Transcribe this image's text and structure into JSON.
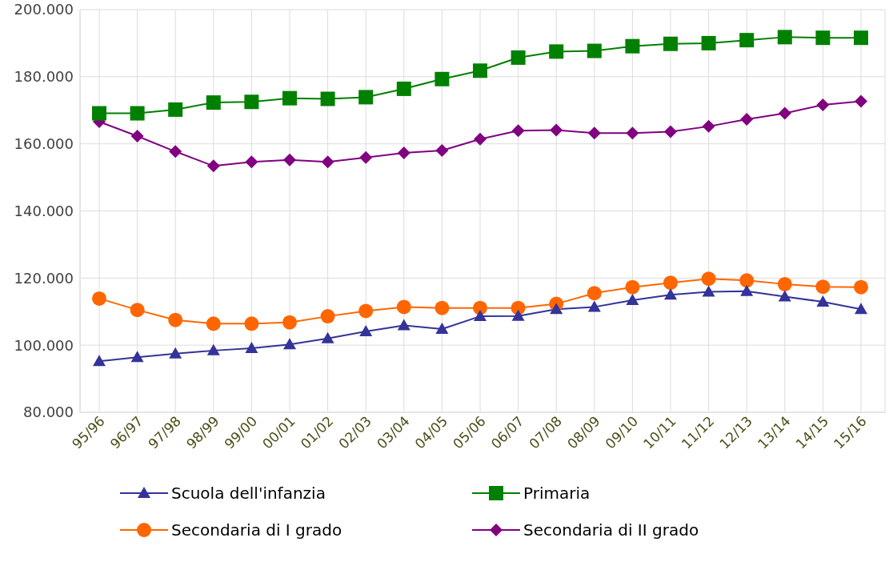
{
  "chart_data": {
    "type": "line",
    "categories": [
      "95/96",
      "96/97",
      "97/98",
      "98/99",
      "99/00",
      "00/01",
      "01/02",
      "02/03",
      "03/04",
      "04/05",
      "05/06",
      "06/07",
      "07/08",
      "08/09",
      "09/10",
      "10/11",
      "11/12",
      "12/13",
      "13/14",
      "14/15",
      "15/16"
    ],
    "series": [
      {
        "name": "Scuola dell'infanzia",
        "color": "#333399",
        "marker": "triangle",
        "values": [
          95200,
          96400,
          97500,
          98400,
          99100,
          100200,
          102000,
          104100,
          105900,
          104800,
          108600,
          108700,
          110700,
          111400,
          113400,
          115000,
          115900,
          116100,
          114500,
          112900,
          110700
        ]
      },
      {
        "name": "Primaria",
        "color": "#008000",
        "marker": "square",
        "values": [
          169100,
          169100,
          170200,
          172300,
          172500,
          173600,
          173400,
          173900,
          176400,
          179300,
          181800,
          185700,
          187500,
          187700,
          189100,
          189800,
          190000,
          190900,
          191800,
          191600,
          191600
        ]
      },
      {
        "name": "Secondaria di I grado",
        "color": "#ff6600",
        "marker": "circle",
        "values": [
          113900,
          110500,
          107500,
          106400,
          106400,
          106800,
          108600,
          110200,
          111400,
          111100,
          111100,
          111100,
          112300,
          115500,
          117300,
          118600,
          119800,
          119300,
          118200,
          117400,
          117300
        ]
      },
      {
        "name": "Secondaria di II grado",
        "color": "#800080",
        "marker": "diamond",
        "values": [
          166600,
          162300,
          157700,
          153400,
          154600,
          155200,
          154600,
          155900,
          157300,
          158000,
          161400,
          163900,
          164100,
          163200,
          163200,
          163600,
          165200,
          167300,
          169100,
          171600,
          172700
        ]
      }
    ],
    "ylim": [
      80000,
      200000
    ],
    "yticks": [
      {
        "value": 80000,
        "label": "80.000"
      },
      {
        "value": 100000,
        "label": "100.000"
      },
      {
        "value": 120000,
        "label": "120.000"
      },
      {
        "value": 140000,
        "label": "140.000"
      },
      {
        "value": 160000,
        "label": "160.000"
      },
      {
        "value": 180000,
        "label": "180.000"
      },
      {
        "value": 200000,
        "label": "200.000"
      }
    ],
    "grid": true,
    "legend": "bottom",
    "line_style": "solid"
  }
}
